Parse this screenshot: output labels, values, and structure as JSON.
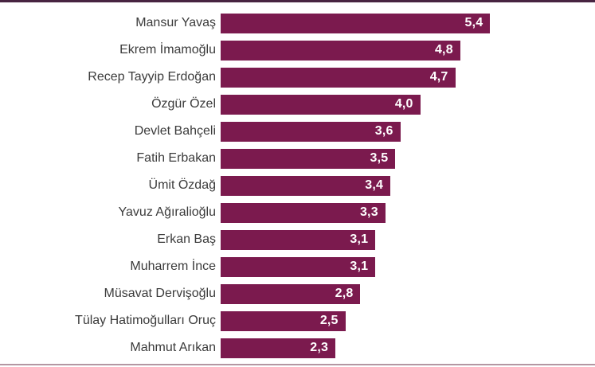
{
  "chart_data": {
    "type": "bar",
    "orientation": "horizontal",
    "title": "",
    "xlabel": "",
    "ylabel": "",
    "grid": false,
    "legend": false,
    "xlim": [
      0,
      7.5
    ],
    "categories": [
      "Mansur Yavaş",
      "Ekrem İmamoğlu",
      "Recep Tayyip Erdoğan",
      "Özgür Özel",
      "Devlet Bahçeli",
      "Fatih Erbakan",
      "Ümit Özdağ",
      "Yavuz Ağıralioğlu",
      "Erkan Baş",
      "Muharrem İnce",
      "Müsavat Dervişoğlu",
      "Tülay Hatimoğulları Oruç",
      "Mahmut Arıkan"
    ],
    "values": [
      5.4,
      4.8,
      4.7,
      4.0,
      3.6,
      3.5,
      3.4,
      3.3,
      3.1,
      3.1,
      2.8,
      2.5,
      2.3
    ],
    "value_labels": [
      "5,4",
      "4,8",
      "4,7",
      "4,0",
      "3,6",
      "3,5",
      "3,4",
      "3,3",
      "3,1",
      "3,1",
      "2,8",
      "2,5",
      "2,3"
    ],
    "colors": {
      "bar": "#7b1a4e",
      "value_text": "#ffffff",
      "category_text": "#3b3b3b",
      "top_border": "#472441",
      "bottom_border": "#b496a2",
      "background": "#ffffff"
    }
  }
}
